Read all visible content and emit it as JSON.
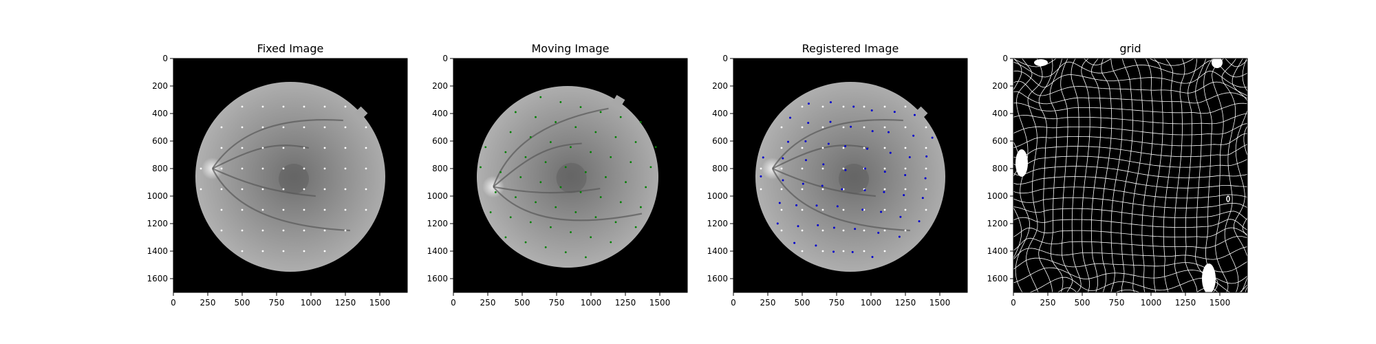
{
  "figure": {
    "background": "#ffffff",
    "axis_color": "#000000"
  },
  "chart_data": [
    {
      "type": "image",
      "title": "Fixed Image",
      "content": "grayscale fundus photograph with point overlay",
      "xlim": [
        0,
        1700
      ],
      "ylim": [
        1700,
        0
      ],
      "xticks": [
        0,
        250,
        500,
        750,
        1000,
        1250,
        1500
      ],
      "yticks": [
        0,
        200,
        400,
        600,
        800,
        1000,
        1200,
        1400,
        1600
      ],
      "disc": {
        "cx": 850,
        "cy": 860,
        "r": 690
      },
      "markers": {
        "color": "#ffffff",
        "layout": "grid",
        "x_start": 200,
        "x_step": 150,
        "y_start": 200,
        "y_step": 150,
        "points": 69
      }
    },
    {
      "type": "image",
      "title": "Moving Image",
      "content": "grayscale fundus photograph (rotated) with point overlay",
      "xlim": [
        0,
        1700
      ],
      "ylim": [
        1700,
        0
      ],
      "xticks": [
        0,
        250,
        500,
        750,
        1000,
        1250,
        1500
      ],
      "yticks": [
        0,
        200,
        400,
        600,
        800,
        1000,
        1200,
        1400,
        1600
      ],
      "disc": {
        "cx": 830,
        "cy": 860,
        "r": 660
      },
      "markers": {
        "color": "#008000",
        "layout": "rotated grid",
        "points": 69
      }
    },
    {
      "type": "image",
      "title": "Registered Image",
      "content": "grayscale fundus photograph with fixed and registered point overlays",
      "xlim": [
        0,
        1700
      ],
      "ylim": [
        1700,
        0
      ],
      "xticks": [
        0,
        250,
        500,
        750,
        1000,
        1250,
        1500
      ],
      "yticks": [
        0,
        200,
        400,
        600,
        800,
        1000,
        1200,
        1400,
        1600
      ],
      "disc": {
        "cx": 850,
        "cy": 860,
        "r": 690
      },
      "markers": [
        {
          "color": "#ffffff",
          "layout": "grid",
          "points": 69
        },
        {
          "color": "#0000cc",
          "layout": "warped grid",
          "points": 69
        }
      ]
    },
    {
      "type": "image",
      "title": "grid",
      "content": "white deformation grid lines on black background",
      "xlim": [
        0,
        1700
      ],
      "ylim": [
        1700,
        0
      ],
      "xticks": [
        0,
        250,
        500,
        750,
        1000,
        1250,
        1500
      ],
      "yticks": [
        0,
        200,
        400,
        600,
        800,
        1000,
        1200,
        1400,
        1600
      ],
      "grid": {
        "line_color": "#ffffff",
        "background": "#000000",
        "spacing": 75
      }
    }
  ]
}
